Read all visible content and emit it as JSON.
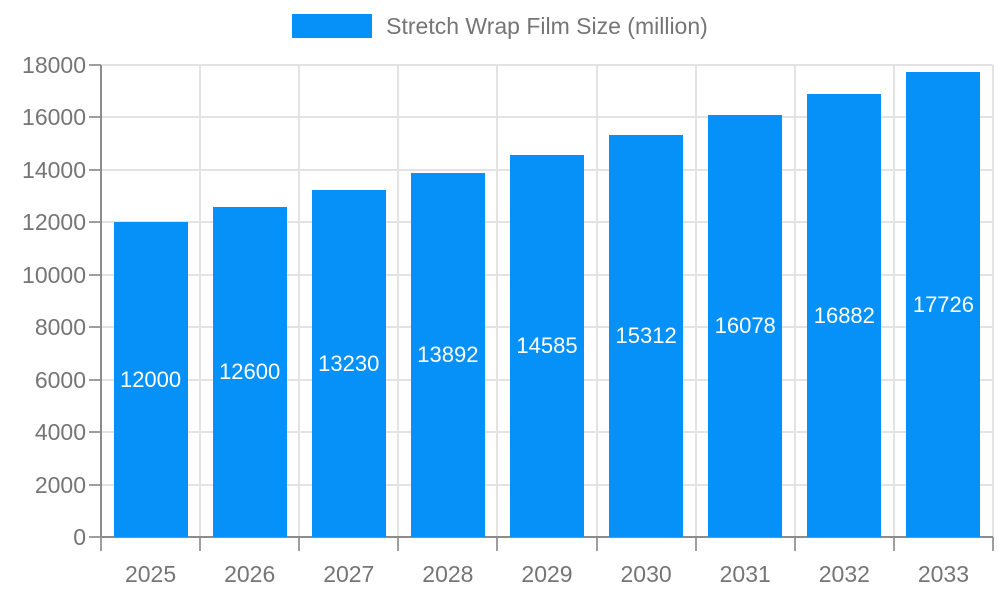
{
  "chart_data": {
    "type": "bar",
    "title": "Stretch Wrap Film Size (million)",
    "categories": [
      "2025",
      "2026",
      "2027",
      "2028",
      "2029",
      "2030",
      "2031",
      "2032",
      "2033"
    ],
    "values": [
      12000,
      12600,
      13230,
      13892,
      14585,
      15312,
      16078,
      16882,
      17726
    ],
    "xlabel": "",
    "ylabel": "",
    "ylim": [
      0,
      18000
    ],
    "ytick_step": 2000,
    "ytick_labels": [
      "0",
      "2000",
      "4000",
      "6000",
      "8000",
      "10000",
      "12000",
      "14000",
      "16000",
      "18000"
    ],
    "grid": true,
    "legend_position": "top",
    "bar_value_labels_shown": true,
    "colors": {
      "bar": "#0591f8",
      "bar_value_text": "#ffffff",
      "axis_text": "#757575",
      "axis_line": "#8c8c8c",
      "tick_line": "#9e9e9e",
      "grid_line": "#e3e3e3",
      "background": "#ffffff"
    }
  }
}
